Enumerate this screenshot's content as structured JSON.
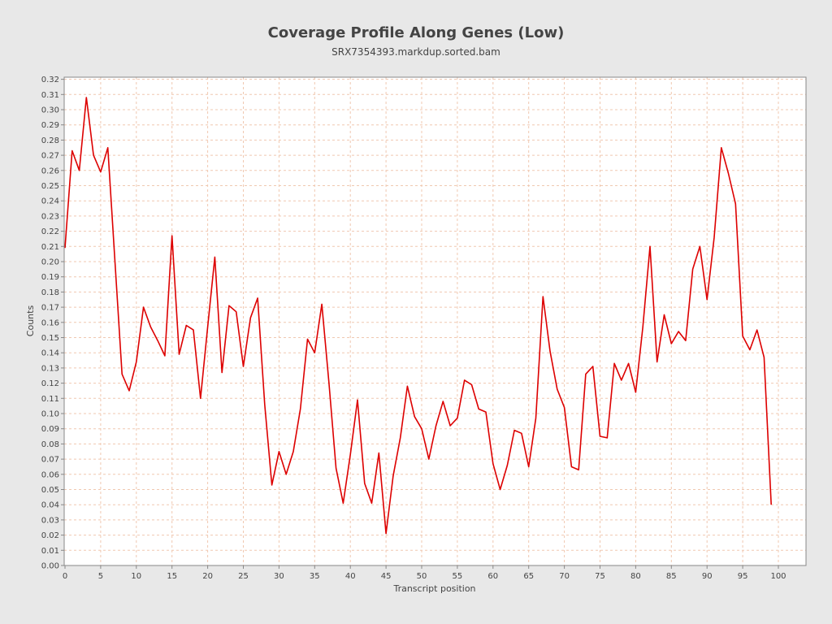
{
  "chart_data": {
    "type": "line",
    "title": "Coverage Profile Along Genes (Low)",
    "subtitle": "SRX7354393.markdup.sorted.bam",
    "xlabel": "Transcript position",
    "ylabel": "Counts",
    "xlim": [
      0,
      104
    ],
    "ylim": [
      0,
      0.322
    ],
    "xticks": [
      0,
      5,
      10,
      15,
      20,
      25,
      30,
      35,
      40,
      45,
      50,
      55,
      60,
      65,
      70,
      75,
      80,
      85,
      90,
      95,
      100
    ],
    "yticks": [
      0.0,
      0.01,
      0.02,
      0.03,
      0.04,
      0.05,
      0.06,
      0.07,
      0.08,
      0.09,
      0.1,
      0.11,
      0.12,
      0.13,
      0.14,
      0.15,
      0.16,
      0.17,
      0.18,
      0.19,
      0.2,
      0.21,
      0.22,
      0.23,
      0.24,
      0.25,
      0.26,
      0.27,
      0.28,
      0.29,
      0.3,
      0.31,
      0.32
    ],
    "grid": true,
    "legend": "none",
    "series": [
      {
        "color": "#dd0000",
        "x": [
          0,
          1,
          2,
          3,
          4,
          5,
          6,
          7,
          8,
          9,
          10,
          11,
          12,
          13,
          14,
          15,
          16,
          17,
          18,
          19,
          20,
          21,
          22,
          23,
          24,
          25,
          26,
          27,
          28,
          29,
          30,
          31,
          32,
          33,
          34,
          35,
          36,
          37,
          38,
          39,
          40,
          41,
          42,
          43,
          44,
          45,
          46,
          47,
          48,
          49,
          50,
          51,
          52,
          53,
          54,
          55,
          56,
          57,
          58,
          59,
          60,
          61,
          62,
          63,
          64,
          65,
          66,
          67,
          68,
          69,
          70,
          71,
          72,
          73,
          74,
          75,
          76,
          77,
          78,
          79,
          80,
          81,
          82,
          83,
          84,
          85,
          86,
          87,
          88,
          89,
          90,
          91,
          92,
          93,
          94,
          95,
          96,
          97,
          98,
          99
        ],
        "values": [
          0.209,
          0.273,
          0.26,
          0.308,
          0.27,
          0.259,
          0.275,
          0.2,
          0.126,
          0.115,
          0.134,
          0.17,
          0.157,
          0.148,
          0.138,
          0.217,
          0.139,
          0.158,
          0.155,
          0.11,
          0.157,
          0.203,
          0.127,
          0.171,
          0.167,
          0.131,
          0.163,
          0.176,
          0.106,
          0.053,
          0.075,
          0.06,
          0.075,
          0.103,
          0.149,
          0.14,
          0.172,
          0.12,
          0.064,
          0.041,
          0.073,
          0.109,
          0.054,
          0.041,
          0.074,
          0.021,
          0.059,
          0.084,
          0.118,
          0.098,
          0.09,
          0.07,
          0.092,
          0.108,
          0.092,
          0.097,
          0.122,
          0.119,
          0.103,
          0.101,
          0.067,
          0.05,
          0.066,
          0.089,
          0.087,
          0.065,
          0.097,
          0.177,
          0.141,
          0.116,
          0.104,
          0.065,
          0.063,
          0.126,
          0.131,
          0.085,
          0.084,
          0.133,
          0.122,
          0.133,
          0.114,
          0.157,
          0.21,
          0.134,
          0.165,
          0.146,
          0.154,
          0.148,
          0.195,
          0.21,
          0.175,
          0.216,
          0.275,
          0.258,
          0.238,
          0.151,
          0.142,
          0.155,
          0.137,
          0.04
        ]
      }
    ]
  }
}
